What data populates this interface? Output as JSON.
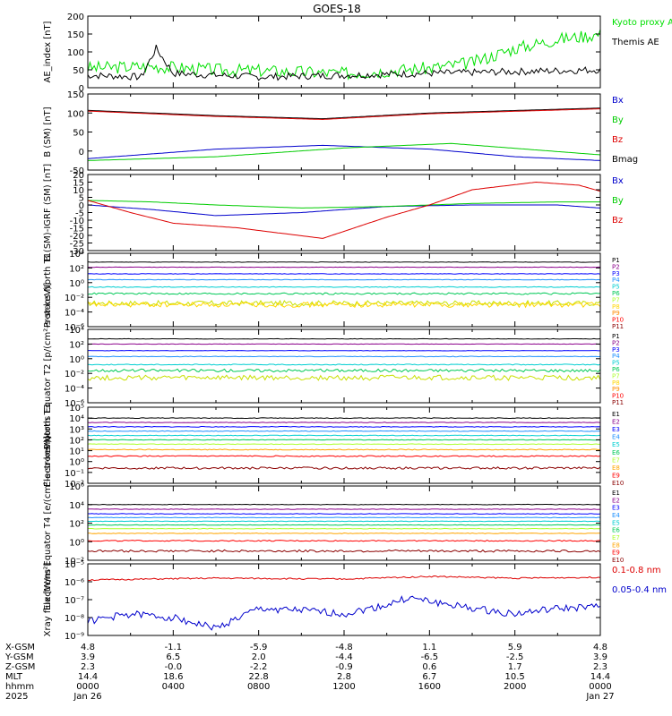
{
  "title": "GOES-18",
  "chart_data": [
    {
      "type": "line",
      "ylabel": "AE_index [nT]",
      "ylim": [
        0,
        200
      ],
      "yticks": [
        0,
        50,
        100,
        150,
        200
      ],
      "ytick_labels": [
        "0",
        "50",
        "100",
        "150",
        "200"
      ],
      "log": false,
      "legend": [
        {
          "text": "Kyoto proxy AE",
          "color": "#00e000"
        },
        {
          "text": "Themis AE",
          "color": "#000000"
        }
      ],
      "series": [
        {
          "name": "Kyoto proxy AE",
          "color": "#00e000",
          "level": 60,
          "noise": 18,
          "seed": 3,
          "x": [
            0,
            3,
            6,
            8,
            12,
            16,
            18,
            20,
            22,
            24
          ],
          "y": [
            55,
            60,
            50,
            48,
            40,
            55,
            70,
            110,
            135,
            150
          ]
        },
        {
          "name": "Themis AE",
          "color": "#000000",
          "level": 40,
          "noise": 10,
          "seed": 7,
          "x": [
            0,
            2.5,
            3.2,
            4,
            6,
            8,
            12,
            16,
            20,
            24
          ],
          "y": [
            35,
            30,
            110,
            40,
            35,
            30,
            35,
            40,
            45,
            50
          ]
        }
      ]
    },
    {
      "type": "line",
      "ylabel": "B (SM) [nT]",
      "ylim": [
        -50,
        150
      ],
      "yticks": [
        -50,
        0,
        50,
        100,
        150
      ],
      "ytick_labels": [
        "-50",
        "0",
        "50",
        "100",
        "150"
      ],
      "log": false,
      "legend": [
        {
          "text": "Bx",
          "color": "#0000cc"
        },
        {
          "text": "By",
          "color": "#00cc00"
        },
        {
          "text": "Bz",
          "color": "#dd0000"
        },
        {
          "text": "Bmag",
          "color": "#000000"
        }
      ],
      "series": [
        {
          "name": "Bmag",
          "color": "#000000",
          "noise": 0,
          "x": [
            0,
            6,
            11,
            16,
            24
          ],
          "y": [
            107,
            93,
            85,
            100,
            113
          ]
        },
        {
          "name": "Bz",
          "color": "#dd0000",
          "noise": 0,
          "x": [
            0,
            6,
            11,
            16,
            24
          ],
          "y": [
            105,
            91,
            83,
            98,
            111
          ]
        },
        {
          "name": "Bx",
          "color": "#0000cc",
          "noise": 0,
          "x": [
            0,
            6,
            11,
            16,
            20,
            24
          ],
          "y": [
            -20,
            5,
            15,
            5,
            -15,
            -25
          ]
        },
        {
          "name": "By",
          "color": "#00cc00",
          "noise": 0,
          "x": [
            0,
            6,
            12,
            17,
            24
          ],
          "y": [
            -25,
            -15,
            8,
            20,
            -10
          ]
        }
      ]
    },
    {
      "type": "line",
      "ylabel": "B (SM)-IGRF (SM) [nT]",
      "ylim": [
        -30,
        20
      ],
      "yticks": [
        -30,
        -25,
        -20,
        -15,
        -10,
        -5,
        0,
        5,
        10,
        15,
        20
      ],
      "ytick_labels": [
        "-30",
        "-25",
        "-20",
        "-15",
        "-10",
        "-5",
        "0",
        "5",
        "10",
        "15",
        "20"
      ],
      "log": false,
      "legend": [
        {
          "text": "Bx",
          "color": "#0000cc"
        },
        {
          "text": "By",
          "color": "#00cc00"
        },
        {
          "text": "Bz",
          "color": "#dd0000"
        }
      ],
      "series": [
        {
          "name": "Bx",
          "color": "#0000cc",
          "noise": 0,
          "x": [
            0,
            3,
            6,
            10,
            14,
            18,
            22,
            24
          ],
          "y": [
            0,
            -3,
            -7,
            -5,
            -1,
            0,
            0,
            -2
          ]
        },
        {
          "name": "By",
          "color": "#00cc00",
          "noise": 0,
          "x": [
            0,
            3,
            6,
            10,
            14,
            18,
            22,
            24
          ],
          "y": [
            3,
            2,
            0,
            -2,
            -1,
            1,
            2,
            2
          ]
        },
        {
          "name": "Bz",
          "color": "#dd0000",
          "noise": 0,
          "x": [
            0,
            2,
            4,
            7,
            11,
            14,
            16,
            18,
            21,
            23,
            24
          ],
          "y": [
            3,
            -5,
            -12,
            -15,
            -22,
            -8,
            0,
            10,
            15,
            13,
            9
          ]
        }
      ]
    },
    {
      "type": "line",
      "ylabel": "Protons North T1",
      "ylim": [
        -6,
        4
      ],
      "yticks": [
        -6,
        -4,
        -2,
        0,
        2,
        4
      ],
      "ytick_labels": [
        "10⁻⁶",
        "10⁻⁴",
        "10⁻²",
        "10⁰",
        "10²",
        "10⁴"
      ],
      "log": true,
      "legend": [
        {
          "text": "P1",
          "color": "#000000"
        },
        {
          "text": "P2",
          "color": "#8b008b"
        },
        {
          "text": "P3",
          "color": "#0000ff"
        },
        {
          "text": "P4",
          "color": "#1e90ff"
        },
        {
          "text": "P5",
          "color": "#00ced1"
        },
        {
          "text": "P6",
          "color": "#00c957"
        },
        {
          "text": "P7",
          "color": "#adff2f"
        },
        {
          "text": "P8",
          "color": "#ffd700"
        },
        {
          "text": "P9",
          "color": "#ff8c00"
        },
        {
          "text": "P10",
          "color": "#ff0000"
        },
        {
          "text": "P11",
          "color": "#8b0000"
        }
      ],
      "series": [
        {
          "name": "P1",
          "color": "#000000",
          "level": 2.8,
          "noise": 0.03,
          "seed": 11
        },
        {
          "name": "P2",
          "color": "#8b008b",
          "level": 2.1,
          "noise": 0.03,
          "seed": 12
        },
        {
          "name": "P3",
          "color": "#0000ff",
          "level": 1.2,
          "noise": 0.03,
          "seed": 13
        },
        {
          "name": "P4",
          "color": "#1e90ff",
          "level": 0.4,
          "noise": 0.04,
          "seed": 14
        },
        {
          "name": "P5",
          "color": "#00ced1",
          "level": -0.6,
          "noise": 0.05,
          "seed": 15
        },
        {
          "name": "P6",
          "color": "#00c957",
          "level": -1.5,
          "noise": 0.12,
          "seed": 16
        },
        {
          "name": "P7",
          "color": "#c8e000",
          "level": -2.8,
          "noise": 0.35,
          "seed": 17
        },
        {
          "name": "P8",
          "color": "#ffd700",
          "level": -3.0,
          "noise": 0.35,
          "seed": 18
        }
      ]
    },
    {
      "type": "line",
      "ylabel": "Protons Equator T2 [p/(cm²-s-sr-keV)]",
      "ylim": [
        -6,
        4
      ],
      "yticks": [
        -6,
        -4,
        -2,
        0,
        2,
        4
      ],
      "ytick_labels": [
        "10⁻⁶",
        "10⁻⁴",
        "10⁻²",
        "10⁰",
        "10²",
        "10⁴"
      ],
      "log": true,
      "legend": [
        {
          "text": "P1",
          "color": "#000000"
        },
        {
          "text": "P2",
          "color": "#8b008b"
        },
        {
          "text": "P3",
          "color": "#0000ff"
        },
        {
          "text": "P4",
          "color": "#1e90ff"
        },
        {
          "text": "P5",
          "color": "#00ced1"
        },
        {
          "text": "P6",
          "color": "#00c957"
        },
        {
          "text": "P7",
          "color": "#adff2f"
        },
        {
          "text": "P8",
          "color": "#ffd700"
        },
        {
          "text": "P9",
          "color": "#ff8c00"
        },
        {
          "text": "P10",
          "color": "#ff0000"
        },
        {
          "text": "P11",
          "color": "#8b0000"
        }
      ],
      "series": [
        {
          "name": "P1",
          "color": "#000000",
          "level": 2.7,
          "noise": 0.03,
          "seed": 21
        },
        {
          "name": "P2",
          "color": "#8b008b",
          "level": 2.0,
          "noise": 0.03,
          "seed": 22
        },
        {
          "name": "P3",
          "color": "#0000ff",
          "level": 1.1,
          "noise": 0.03,
          "seed": 23
        },
        {
          "name": "P4",
          "color": "#1e90ff",
          "level": 0.3,
          "noise": 0.04,
          "seed": 24
        },
        {
          "name": "P5",
          "color": "#00ced1",
          "level": -0.8,
          "noise": 0.06,
          "seed": 25
        },
        {
          "name": "P6",
          "color": "#00c957",
          "level": -1.6,
          "noise": 0.2,
          "seed": 26
        },
        {
          "name": "P7",
          "color": "#c8e000",
          "level": -2.6,
          "noise": 0.35,
          "seed": 27
        }
      ]
    },
    {
      "type": "line",
      "ylabel": "Electrons North T3",
      "ylim": [
        -2,
        5
      ],
      "yticks": [
        -2,
        -1,
        0,
        1,
        2,
        3,
        4,
        5
      ],
      "ytick_labels": [
        "10⁻²",
        "10⁻¹",
        "10⁰",
        "10¹",
        "10²",
        "10³",
        "10⁴",
        "10⁵"
      ],
      "log": true,
      "legend": [
        {
          "text": "E1",
          "color": "#000000"
        },
        {
          "text": "E2",
          "color": "#8b008b"
        },
        {
          "text": "E3",
          "color": "#0000ff"
        },
        {
          "text": "E4",
          "color": "#1e90ff"
        },
        {
          "text": "E5",
          "color": "#00ced1"
        },
        {
          "text": "E6",
          "color": "#00c957"
        },
        {
          "text": "E7",
          "color": "#adff2f"
        },
        {
          "text": "E8",
          "color": "#ffa500"
        },
        {
          "text": "E9",
          "color": "#ff0000"
        },
        {
          "text": "E10",
          "color": "#8b0000"
        }
      ],
      "series": [
        {
          "name": "E1",
          "color": "#000000",
          "level": 4.0,
          "noise": 0.03,
          "seed": 31
        },
        {
          "name": "E2",
          "color": "#8b008b",
          "level": 3.6,
          "noise": 0.03,
          "seed": 32
        },
        {
          "name": "E3",
          "color": "#0000ff",
          "level": 3.2,
          "noise": 0.03,
          "seed": 33
        },
        {
          "name": "E4",
          "color": "#1e90ff",
          "level": 2.8,
          "noise": 0.03,
          "seed": 34
        },
        {
          "name": "E5",
          "color": "#00ced1",
          "level": 2.4,
          "noise": 0.03,
          "seed": 35
        },
        {
          "name": "E6",
          "color": "#00c957",
          "level": 2.0,
          "noise": 0.03,
          "seed": 36
        },
        {
          "name": "E7",
          "color": "#adff2f",
          "level": 1.6,
          "noise": 0.03,
          "seed": 37
        },
        {
          "name": "E8",
          "color": "#ffa500",
          "level": 1.1,
          "noise": 0.04,
          "seed": 38
        },
        {
          "name": "E9",
          "color": "#ff0000",
          "level": 0.5,
          "noise": 0.05,
          "seed": 39
        },
        {
          "name": "E10",
          "color": "#8b0000",
          "level": -0.6,
          "noise": 0.1,
          "seed": 40
        }
      ]
    },
    {
      "type": "line",
      "ylabel": "Electrons Equator T4 [e/(cm²-s-sr-keV)]",
      "ylim": [
        -2,
        6
      ],
      "yticks": [
        -2,
        0,
        2,
        4,
        6
      ],
      "ytick_labels": [
        "10⁻²",
        "10⁰",
        "10²",
        "10⁴",
        "10⁶"
      ],
      "log": true,
      "legend": [
        {
          "text": "E1",
          "color": "#000000"
        },
        {
          "text": "E2",
          "color": "#8b008b"
        },
        {
          "text": "E3",
          "color": "#0000ff"
        },
        {
          "text": "E4",
          "color": "#1e90ff"
        },
        {
          "text": "E5",
          "color": "#00ced1"
        },
        {
          "text": "E6",
          "color": "#00c957"
        },
        {
          "text": "E7",
          "color": "#adff2f"
        },
        {
          "text": "E8",
          "color": "#ffa500"
        },
        {
          "text": "E9",
          "color": "#ff0000"
        },
        {
          "text": "E10",
          "color": "#8b0000"
        }
      ],
      "series": [
        {
          "name": "E1",
          "color": "#000000",
          "level": 4.0,
          "noise": 0.03,
          "seed": 41
        },
        {
          "name": "E2",
          "color": "#8b008b",
          "level": 3.5,
          "noise": 0.03,
          "seed": 42
        },
        {
          "name": "E3",
          "color": "#0000ff",
          "level": 3.0,
          "noise": 0.03,
          "seed": 43
        },
        {
          "name": "E4",
          "color": "#1e90ff",
          "level": 2.6,
          "noise": 0.03,
          "seed": 44
        },
        {
          "name": "E5",
          "color": "#00ced1",
          "level": 2.2,
          "noise": 0.03,
          "seed": 45
        },
        {
          "name": "E6",
          "color": "#00c957",
          "level": 1.8,
          "noise": 0.03,
          "seed": 46
        },
        {
          "name": "E7",
          "color": "#adff2f",
          "level": 1.4,
          "noise": 0.03,
          "seed": 47
        },
        {
          "name": "E8",
          "color": "#ffa500",
          "level": 0.9,
          "noise": 0.04,
          "seed": 48
        },
        {
          "name": "E9",
          "color": "#ff0000",
          "level": 0.1,
          "noise": 0.06,
          "seed": 49
        },
        {
          "name": "E10",
          "color": "#8b0000",
          "level": -1.0,
          "noise": 0.12,
          "seed": 50
        }
      ]
    },
    {
      "type": "line",
      "ylabel": "Xray flux [W/m²]",
      "ylim": [
        -9,
        -5
      ],
      "yticks": [
        -9,
        -8,
        -7,
        -6,
        -5
      ],
      "ytick_labels": [
        "10⁻⁹",
        "10⁻⁸",
        "10⁻⁷",
        "10⁻⁶",
        "10⁻⁵"
      ],
      "log": true,
      "legend": [
        {
          "text": "0.1-0.8 nm",
          "color": "#dd0000"
        },
        {
          "text": "0.05-0.4 nm",
          "color": "#0000cc"
        }
      ],
      "series": [
        {
          "name": "0.1-0.8 nm",
          "color": "#dd0000",
          "noise": 0.04,
          "seed": 51,
          "x": [
            0,
            6,
            12,
            16,
            20,
            24
          ],
          "y": [
            -5.9,
            -5.8,
            -5.85,
            -5.7,
            -5.8,
            -5.75
          ]
        },
        {
          "name": "0.05-0.4 nm",
          "color": "#0000cc",
          "noise": 0.2,
          "seed": 52,
          "x": [
            0,
            2,
            4,
            6,
            8,
            10,
            12,
            14,
            15,
            16,
            18,
            20,
            22,
            24
          ],
          "y": [
            -8.2,
            -7.8,
            -8.0,
            -8.6,
            -7.5,
            -7.6,
            -7.8,
            -7.3,
            -6.9,
            -7.1,
            -7.5,
            -7.8,
            -7.5,
            -7.4
          ]
        }
      ]
    }
  ],
  "x_axis": {
    "row_labels": [
      "X-GSM",
      "Y-GSM",
      "Z-GSM",
      "MLT",
      "hhmm",
      "2025"
    ],
    "ticks": [
      {
        "hour": 0,
        "values": [
          "4.8",
          "3.9",
          "2.3",
          "14.4",
          "0000",
          "Jan 26"
        ]
      },
      {
        "hour": 4,
        "values": [
          "-1.1",
          "6.5",
          "-0.0",
          "18.6",
          "0400",
          ""
        ]
      },
      {
        "hour": 8,
        "values": [
          "-5.9",
          "2.0",
          "-2.2",
          "22.8",
          "0800",
          ""
        ]
      },
      {
        "hour": 12,
        "values": [
          "-4.8",
          "-4.4",
          "-0.9",
          "2.8",
          "1200",
          ""
        ]
      },
      {
        "hour": 16,
        "values": [
          "1.1",
          "-6.5",
          "0.6",
          "6.7",
          "1600",
          ""
        ]
      },
      {
        "hour": 20,
        "values": [
          "5.9",
          "-2.5",
          "1.7",
          "10.5",
          "2000",
          ""
        ]
      },
      {
        "hour": 24,
        "values": [
          "4.8",
          "3.9",
          "2.3",
          "14.4",
          "0000",
          "Jan 27"
        ]
      }
    ]
  }
}
